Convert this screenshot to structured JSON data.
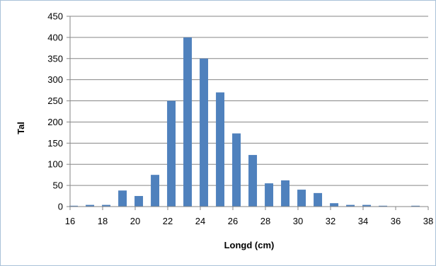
{
  "chart_data": {
    "type": "bar",
    "title": "",
    "xlabel": "Longd (cm)",
    "ylabel": "Tal",
    "ylim": [
      0,
      450
    ],
    "yticks": [
      0,
      50,
      100,
      150,
      200,
      250,
      300,
      350,
      400,
      450
    ],
    "xlim": [
      16,
      38
    ],
    "xticks": [
      16,
      18,
      20,
      22,
      24,
      26,
      28,
      30,
      32,
      34,
      36,
      38
    ],
    "grid": true,
    "legend": "none",
    "bar_color": "#4f81bd",
    "categories": [
      16,
      17,
      18,
      19,
      20,
      21,
      22,
      23,
      24,
      25,
      26,
      27,
      28,
      29,
      30,
      31,
      32,
      33,
      34,
      35,
      36,
      37
    ],
    "values": [
      2,
      4,
      4,
      38,
      25,
      75,
      250,
      400,
      350,
      270,
      173,
      122,
      55,
      62,
      40,
      32,
      8,
      4,
      4,
      2,
      0,
      2
    ]
  }
}
